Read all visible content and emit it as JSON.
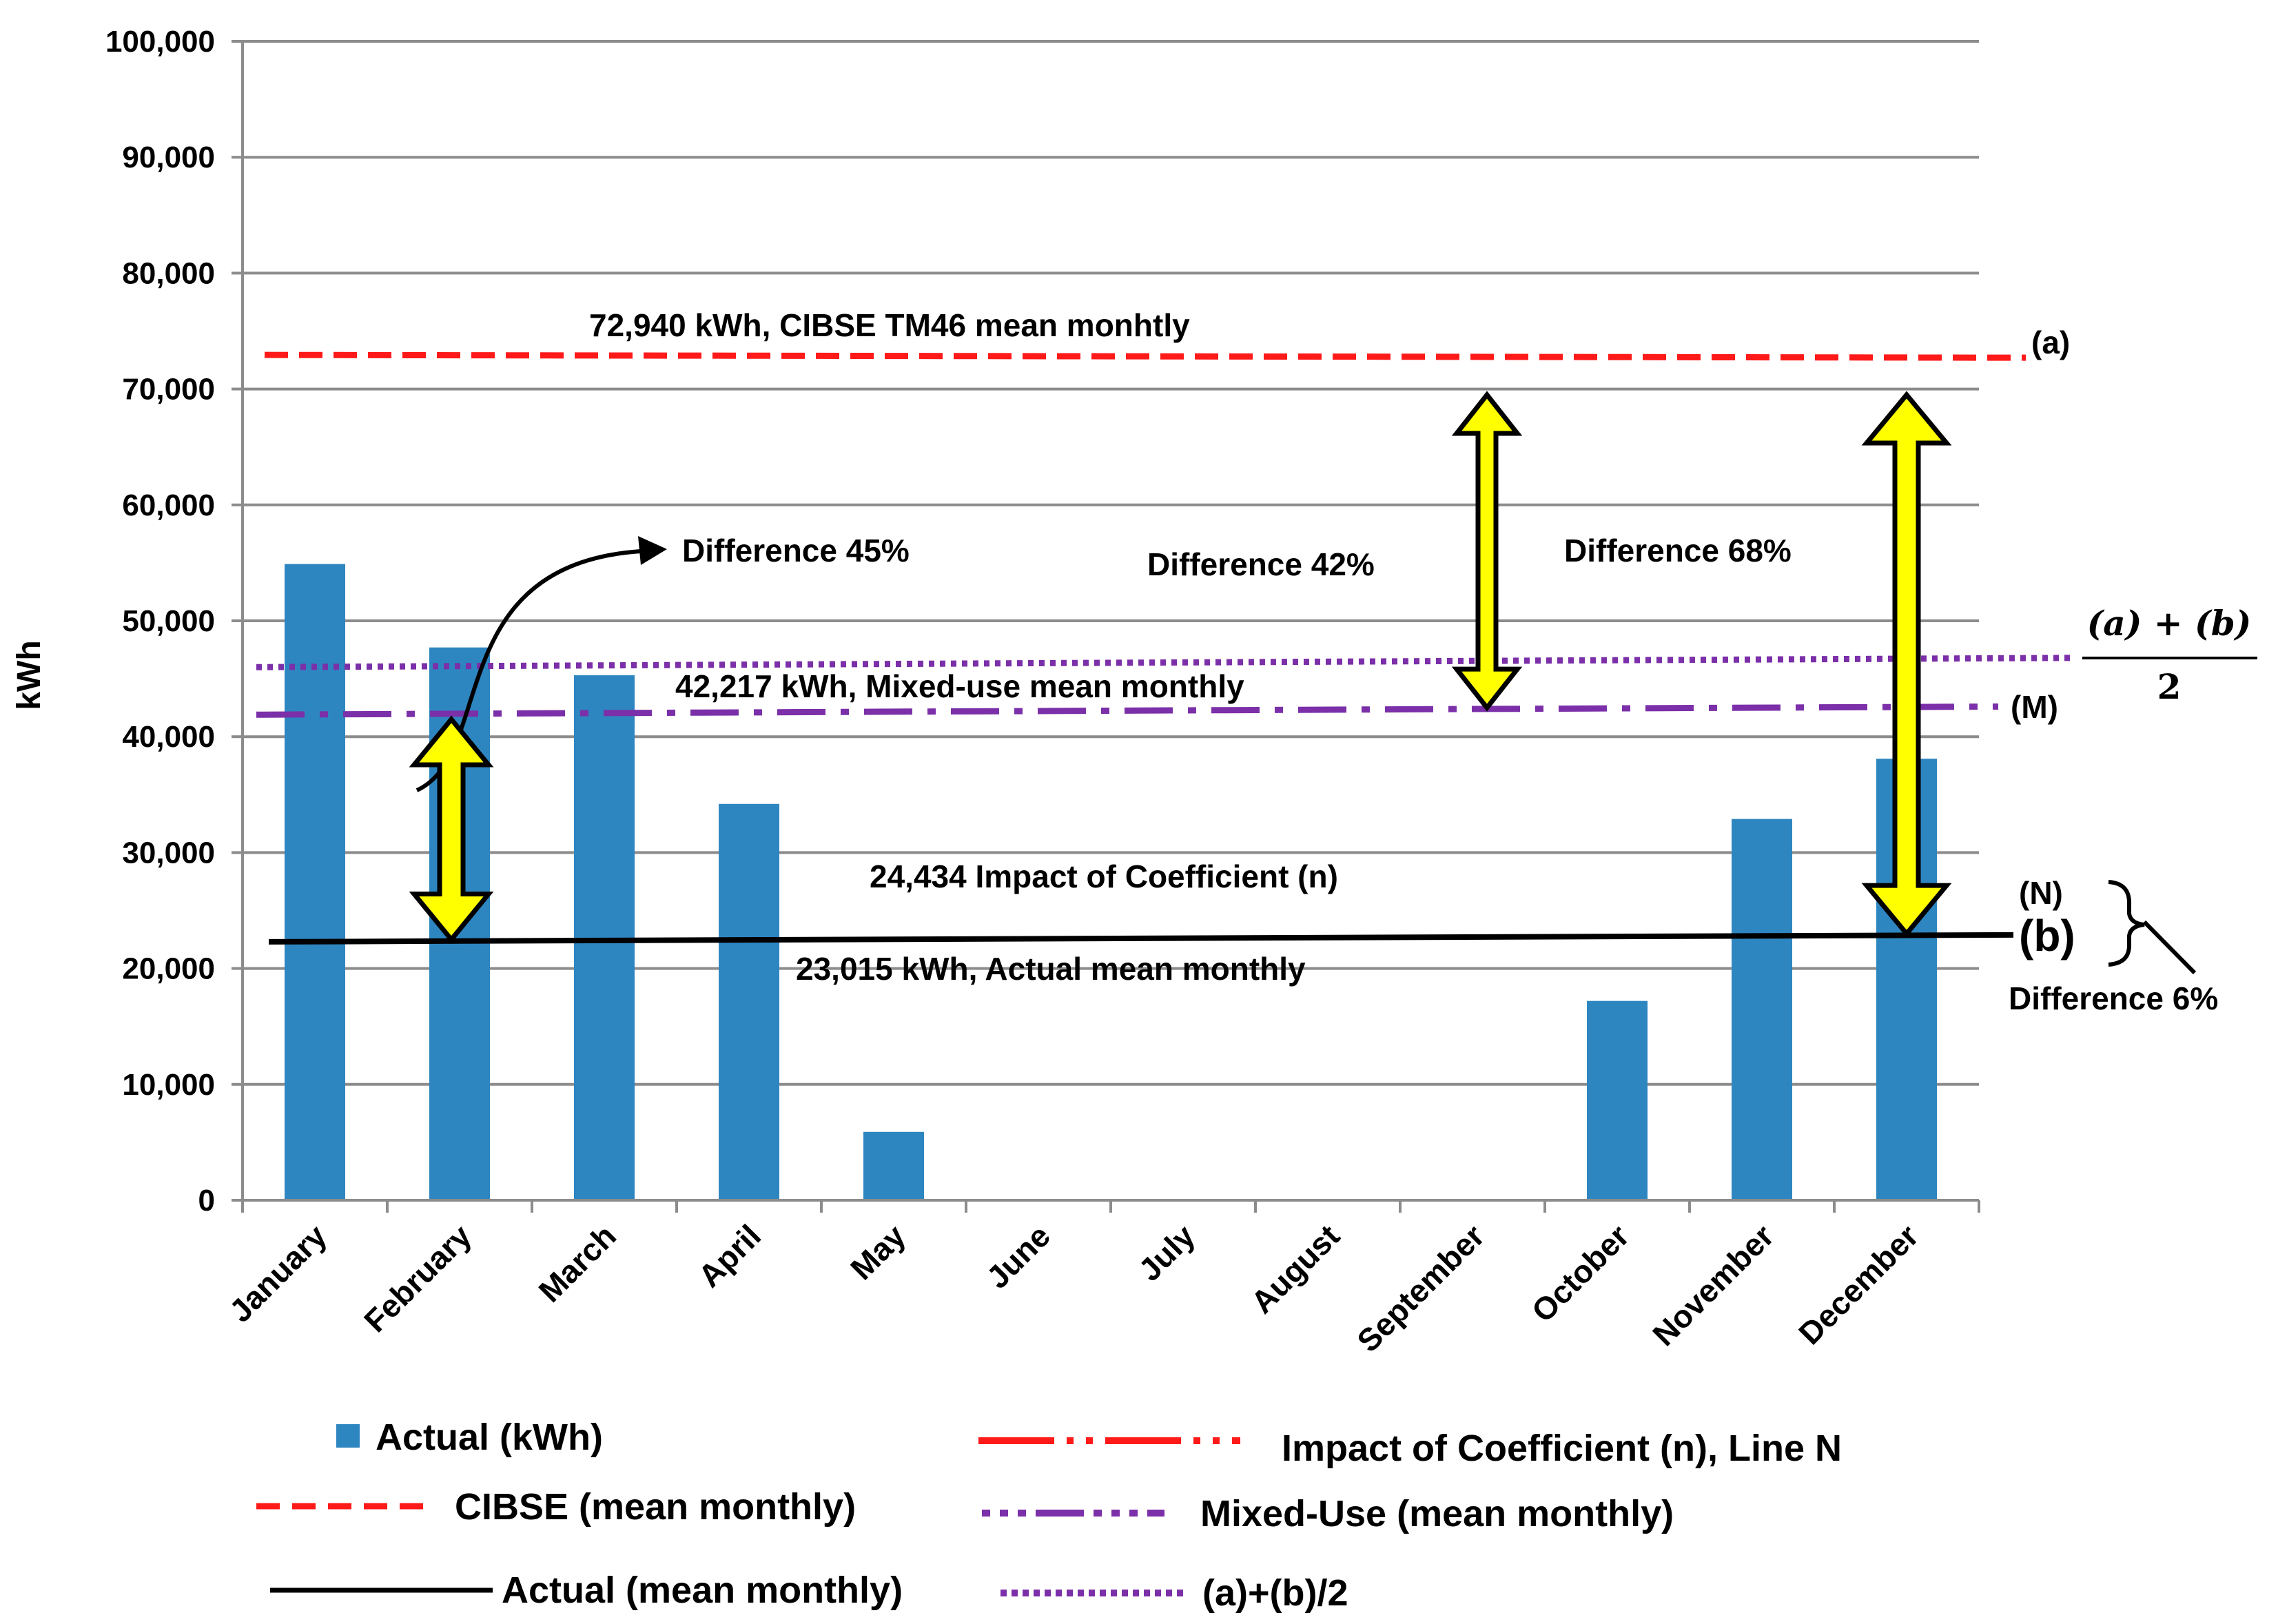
{
  "chart_data": {
    "type": "bar",
    "ylabel": "kWh",
    "ylim": [
      0,
      100000
    ],
    "yticks": [
      0,
      10000,
      20000,
      30000,
      40000,
      50000,
      60000,
      70000,
      80000,
      90000,
      100000
    ],
    "ytick_labels": [
      "0",
      "10,000",
      "20,000",
      "30,000",
      "40,000",
      "50,000",
      "60,000",
      "70,000",
      "80,000",
      "90,000",
      "100,000"
    ],
    "grid": true,
    "categories": [
      "January",
      "February",
      "March",
      "April",
      "May",
      "June",
      "July",
      "August",
      "September",
      "October",
      "November",
      "December"
    ],
    "series": [
      {
        "name": "Actual  (kWh)",
        "kind": "bar",
        "color": "#2E86C1",
        "values": [
          54900,
          47700,
          45300,
          34200,
          5900,
          0,
          0,
          0,
          0,
          17200,
          32900,
          38100
        ]
      }
    ],
    "lines": [
      {
        "id": "cibse",
        "legend": "CIBSE (mean monthly)",
        "color": "#FF1A1A",
        "style": "dashed",
        "y_start": 72940,
        "y_end": 72700,
        "end_label": "(a)",
        "annotation": "72,940 kWh, CIBSE TM46  mean monhtly"
      },
      {
        "id": "mixed",
        "legend": "Mixed-Use (mean monthly)",
        "color": "#7B2FA8",
        "style": "dashdot",
        "y_start": 41900,
        "y_end": 42600,
        "end_label": "(M)",
        "annotation": "42,217 kWh, Mixed-use mean monthly"
      },
      {
        "id": "avg",
        "legend": "(a)+(b)/2",
        "color": "#7B2FA8",
        "style": "dotted",
        "y_start": 46000,
        "y_end": 46800
      },
      {
        "id": "actual",
        "legend": "Actual (mean monthly)",
        "color": "#000000",
        "style": "solid",
        "y_start": 22300,
        "y_end": 22900,
        "end_label": "(b)",
        "annotation": "23,015 kWh, Actual mean monthly"
      },
      {
        "id": "impact",
        "legend": "Impact of Coefficient (n), Line N",
        "color": "#FF1A1A",
        "style": "dashdotdot",
        "y": 24434,
        "end_label": "(N)",
        "annotation": "24,434 Impact of Coefficient (n)"
      }
    ],
    "differences": [
      {
        "text": "Difference 45%",
        "arrow_category": "February",
        "from": 22500,
        "to": 41500
      },
      {
        "text": "Difference 42%",
        "arrow_category": "September",
        "from": 42500,
        "to": 69500
      },
      {
        "text": "Difference 68%",
        "arrow_category": "December",
        "from": 23000,
        "to": 69500
      },
      {
        "text": "Difference 6%",
        "between": [
          "(N)",
          "(b)"
        ]
      }
    ],
    "fraction": {
      "numerator": "(a) + (b)",
      "denominator": "2"
    },
    "legend_position": "bottom"
  }
}
